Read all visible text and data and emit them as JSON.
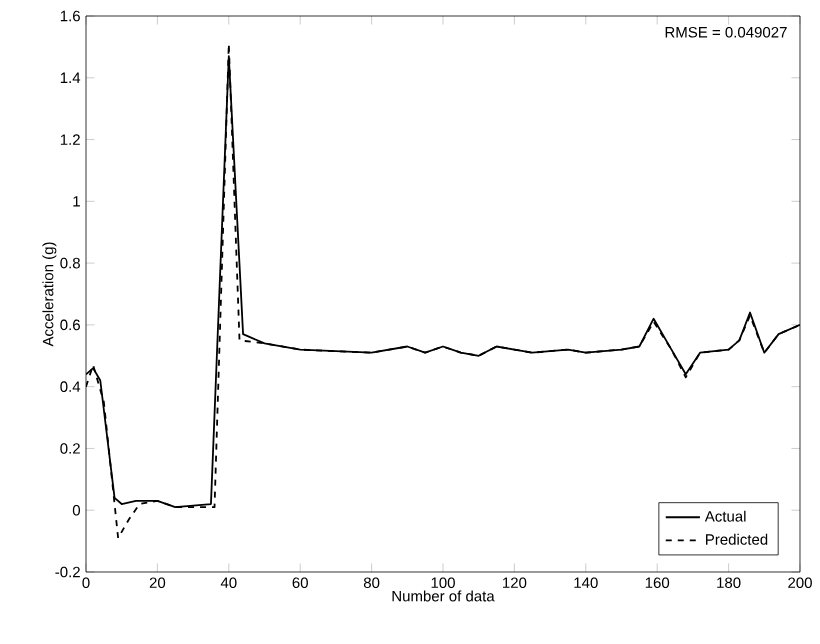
{
  "chart_data": {
    "type": "line",
    "xlabel": "Number of data",
    "ylabel": "Acceleration (g)",
    "xlim": [
      0,
      200
    ],
    "ylim": [
      -0.2,
      1.6
    ],
    "xticks": [
      0,
      20,
      40,
      60,
      80,
      100,
      120,
      140,
      160,
      180,
      200
    ],
    "yticks": [
      -0.2,
      0,
      0.2,
      0.4,
      0.6,
      0.8,
      1,
      1.2,
      1.4,
      1.6
    ],
    "annotations": [
      "RMSE = 0.049027"
    ],
    "legend": "bottom right",
    "grid": false,
    "marker": "none",
    "series": [
      {
        "name": "Actual",
        "color": "#000000",
        "line_style": "solid",
        "x": [
          0,
          2,
          4,
          8,
          10,
          14,
          20,
          25,
          35,
          40,
          44,
          50,
          60,
          80,
          90,
          95,
          100,
          105,
          110,
          115,
          120,
          125,
          135,
          140,
          150,
          155,
          159,
          164,
          168,
          172,
          180,
          183,
          186,
          190,
          194,
          200
        ],
        "values": [
          0.44,
          0.46,
          0.42,
          0.04,
          0.02,
          0.03,
          0.03,
          0.01,
          0.02,
          1.47,
          0.57,
          0.54,
          0.52,
          0.51,
          0.53,
          0.51,
          0.53,
          0.51,
          0.5,
          0.53,
          0.52,
          0.51,
          0.52,
          0.51,
          0.52,
          0.53,
          0.62,
          0.52,
          0.44,
          0.51,
          0.52,
          0.55,
          0.64,
          0.51,
          0.57,
          0.6
        ]
      },
      {
        "name": "Predicted",
        "color": "#000000",
        "line_style": "dashed",
        "x": [
          0,
          2,
          5,
          9,
          12,
          15,
          20,
          25,
          36,
          40,
          43,
          50,
          60,
          80,
          90,
          95,
          100,
          105,
          110,
          115,
          120,
          125,
          135,
          140,
          150,
          155,
          159,
          164,
          168,
          172,
          180,
          183,
          186,
          190,
          194,
          200
        ],
        "values": [
          0.4,
          0.47,
          0.35,
          -0.09,
          -0.03,
          0.02,
          0.03,
          0.01,
          0.01,
          1.51,
          0.55,
          0.54,
          0.52,
          0.51,
          0.53,
          0.51,
          0.53,
          0.51,
          0.5,
          0.53,
          0.52,
          0.51,
          0.52,
          0.51,
          0.52,
          0.53,
          0.61,
          0.52,
          0.43,
          0.51,
          0.52,
          0.55,
          0.63,
          0.51,
          0.57,
          0.6
        ]
      }
    ]
  }
}
